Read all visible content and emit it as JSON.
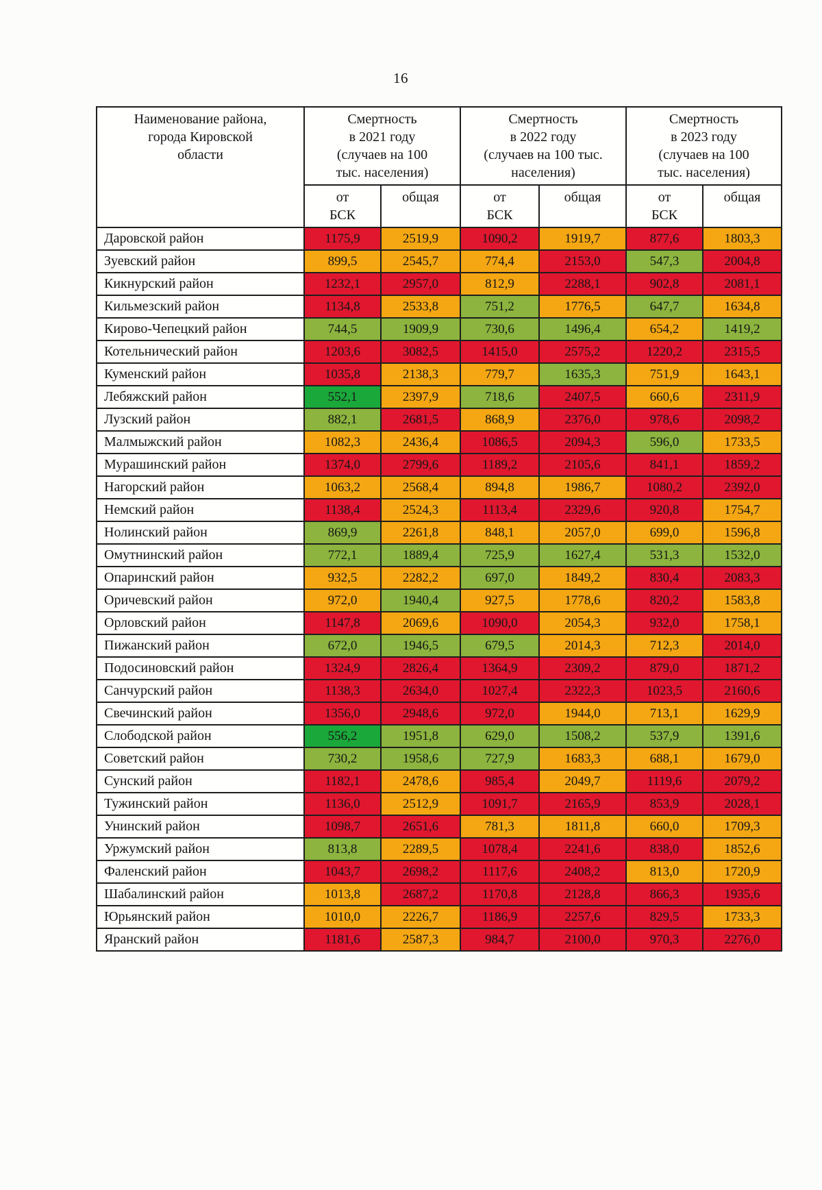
{
  "page_number": "16",
  "colors": {
    "red": "#E0172F",
    "orange": "#F4A713",
    "green": "#8CB43E",
    "bright_green": "#1AA83A"
  },
  "table": {
    "name_header": "Наименование района,\nгорода Кировской\nобласти",
    "years": [
      {
        "title": "Смертность\nв 2021 году\n(случаев на 100\nтыс. населения)"
      },
      {
        "title": "Смертность\nв 2022 году\n(случаев на 100 тыс.\nнаселения)"
      },
      {
        "title": "Смертность\nв 2023 году\n(случаев на 100\nтыс. населения)"
      }
    ],
    "subheaders": {
      "bsk": "от\nБСК",
      "total": "общая"
    },
    "rows": [
      {
        "name": "Даровской район",
        "values": [
          "1175,9",
          "2519,9",
          "1090,2",
          "1919,7",
          "877,6",
          "1803,3"
        ],
        "colors": [
          "red",
          "orange",
          "red",
          "orange",
          "red",
          "orange"
        ]
      },
      {
        "name": "Зуевский  район",
        "values": [
          "899,5",
          "2545,7",
          "774,4",
          "2153,0",
          "547,3",
          "2004,8"
        ],
        "colors": [
          "orange",
          "orange",
          "orange",
          "red",
          "green",
          "red"
        ]
      },
      {
        "name": "Кикнурский  район",
        "values": [
          "1232,1",
          "2957,0",
          "812,9",
          "2288,1",
          "902,8",
          "2081,1"
        ],
        "colors": [
          "red",
          "red",
          "orange",
          "red",
          "red",
          "red"
        ]
      },
      {
        "name": "Кильмезский  район",
        "values": [
          "1134,8",
          "2533,8",
          "751,2",
          "1776,5",
          "647,7",
          "1634,8"
        ],
        "colors": [
          "red",
          "orange",
          "green",
          "orange",
          "green",
          "orange"
        ]
      },
      {
        "name": "Кирово-Чепецкий  район",
        "values": [
          "744,5",
          "1909,9",
          "730,6",
          "1496,4",
          "654,2",
          "1419,2"
        ],
        "colors": [
          "green",
          "green",
          "green",
          "green",
          "orange",
          "green"
        ]
      },
      {
        "name": "Котельнический  район",
        "values": [
          "1203,6",
          "3082,5",
          "1415,0",
          "2575,2",
          "1220,2",
          "2315,5"
        ],
        "colors": [
          "red",
          "red",
          "red",
          "red",
          "red",
          "red"
        ]
      },
      {
        "name": "Куменский район",
        "values": [
          "1035,8",
          "2138,3",
          "779,7",
          "1635,3",
          "751,9",
          "1643,1"
        ],
        "colors": [
          "red",
          "orange",
          "orange",
          "green",
          "orange",
          "orange"
        ]
      },
      {
        "name": "Лебяжский район",
        "values": [
          "552,1",
          "2397,9",
          "718,6",
          "2407,5",
          "660,6",
          "2311,9"
        ],
        "colors": [
          "bright_green",
          "orange",
          "green",
          "red",
          "orange",
          "red"
        ]
      },
      {
        "name": "Лузский  район",
        "values": [
          "882,1",
          "2681,5",
          "868,9",
          "2376,0",
          "978,6",
          "2098,2"
        ],
        "colors": [
          "green",
          "red",
          "orange",
          "red",
          "red",
          "red"
        ]
      },
      {
        "name": "Малмыжский  район",
        "values": [
          "1082,3",
          "2436,4",
          "1086,5",
          "2094,3",
          "596,0",
          "1733,5"
        ],
        "colors": [
          "orange",
          "orange",
          "red",
          "red",
          "green",
          "orange"
        ]
      },
      {
        "name": "Мурашинский  район",
        "values": [
          "1374,0",
          "2799,6",
          "1189,2",
          "2105,6",
          "841,1",
          "1859,2"
        ],
        "colors": [
          "red",
          "red",
          "red",
          "red",
          "red",
          "red"
        ]
      },
      {
        "name": "Нагорский  район",
        "values": [
          "1063,2",
          "2568,4",
          "894,8",
          "1986,7",
          "1080,2",
          "2392,0"
        ],
        "colors": [
          "orange",
          "orange",
          "orange",
          "orange",
          "red",
          "red"
        ]
      },
      {
        "name": "Немский  район",
        "values": [
          "1138,4",
          "2524,3",
          "1113,4",
          "2329,6",
          "920,8",
          "1754,7"
        ],
        "colors": [
          "red",
          "orange",
          "red",
          "red",
          "red",
          "orange"
        ]
      },
      {
        "name": "Нолинский район",
        "values": [
          "869,9",
          "2261,8",
          "848,1",
          "2057,0",
          "699,0",
          "1596,8"
        ],
        "colors": [
          "green",
          "orange",
          "orange",
          "orange",
          "orange",
          "orange"
        ]
      },
      {
        "name": "Омутнинский  район",
        "values": [
          "772,1",
          "1889,4",
          "725,9",
          "1627,4",
          "531,3",
          "1532,0"
        ],
        "colors": [
          "green",
          "green",
          "green",
          "green",
          "green",
          "green"
        ]
      },
      {
        "name": "Опаринский  район",
        "values": [
          "932,5",
          "2282,2",
          "697,0",
          "1849,2",
          "830,4",
          "2083,3"
        ],
        "colors": [
          "orange",
          "orange",
          "green",
          "orange",
          "red",
          "red"
        ]
      },
      {
        "name": "Оричевский  район",
        "values": [
          "972,0",
          "1940,4",
          "927,5",
          "1778,6",
          "820,2",
          "1583,8"
        ],
        "colors": [
          "orange",
          "green",
          "orange",
          "orange",
          "red",
          "orange"
        ]
      },
      {
        "name": "Орловский  район",
        "values": [
          "1147,8",
          "2069,6",
          "1090,0",
          "2054,3",
          "932,0",
          "1758,1"
        ],
        "colors": [
          "red",
          "orange",
          "red",
          "orange",
          "red",
          "orange"
        ]
      },
      {
        "name": "Пижанский  район",
        "values": [
          "672,0",
          "1946,5",
          "679,5",
          "2014,3",
          "712,3",
          "2014,0"
        ],
        "colors": [
          "green",
          "green",
          "green",
          "orange",
          "orange",
          "red"
        ]
      },
      {
        "name": "Подосиновский  район",
        "values": [
          "1324,9",
          "2826,4",
          "1364,9",
          "2309,2",
          "879,0",
          "1871,2"
        ],
        "colors": [
          "red",
          "red",
          "red",
          "red",
          "red",
          "red"
        ]
      },
      {
        "name": "Санчурский  район",
        "values": [
          "1138,3",
          "2634,0",
          "1027,4",
          "2322,3",
          "1023,5",
          "2160,6"
        ],
        "colors": [
          "red",
          "red",
          "red",
          "red",
          "red",
          "red"
        ]
      },
      {
        "name": "Свечинский  район",
        "values": [
          "1356,0",
          "2948,6",
          "972,0",
          "1944,0",
          "713,1",
          "1629,9"
        ],
        "colors": [
          "red",
          "red",
          "red",
          "orange",
          "orange",
          "orange"
        ]
      },
      {
        "name": "Слободской  район",
        "values": [
          "556,2",
          "1951,8",
          "629,0",
          "1508,2",
          "537,9",
          "1391,6"
        ],
        "colors": [
          "bright_green",
          "green",
          "green",
          "green",
          "green",
          "green"
        ]
      },
      {
        "name": "Советский  район",
        "values": [
          "730,2",
          "1958,6",
          "727,9",
          "1683,3",
          "688,1",
          "1679,0"
        ],
        "colors": [
          "green",
          "green",
          "green",
          "orange",
          "orange",
          "orange"
        ]
      },
      {
        "name": "Сунский  район",
        "values": [
          "1182,1",
          "2478,6",
          "985,4",
          "2049,7",
          "1119,6",
          "2079,2"
        ],
        "colors": [
          "red",
          "orange",
          "red",
          "orange",
          "red",
          "red"
        ]
      },
      {
        "name": "Тужинский  район",
        "values": [
          "1136,0",
          "2512,9",
          "1091,7",
          "2165,9",
          "853,9",
          "2028,1"
        ],
        "colors": [
          "red",
          "orange",
          "red",
          "red",
          "red",
          "red"
        ]
      },
      {
        "name": "Унинский  район",
        "values": [
          "1098,7",
          "2651,6",
          "781,3",
          "1811,8",
          "660,0",
          "1709,3"
        ],
        "colors": [
          "red",
          "red",
          "orange",
          "orange",
          "orange",
          "orange"
        ]
      },
      {
        "name": "Уржумский  район",
        "values": [
          "813,8",
          "2289,5",
          "1078,4",
          "2241,6",
          "838,0",
          "1852,6"
        ],
        "colors": [
          "green",
          "orange",
          "red",
          "red",
          "red",
          "orange"
        ]
      },
      {
        "name": "Фаленский  район",
        "values": [
          "1043,7",
          "2698,2",
          "1117,6",
          "2408,2",
          "813,0",
          "1720,9"
        ],
        "colors": [
          "red",
          "red",
          "red",
          "red",
          "orange",
          "orange"
        ]
      },
      {
        "name": "Шабалинский  район",
        "values": [
          "1013,8",
          "2687,2",
          "1170,8",
          "2128,8",
          "866,3",
          "1935,6"
        ],
        "colors": [
          "orange",
          "red",
          "red",
          "red",
          "red",
          "red"
        ]
      },
      {
        "name": "Юрьянский  район",
        "values": [
          "1010,0",
          "2226,7",
          "1186,9",
          "2257,6",
          "829,5",
          "1733,3"
        ],
        "colors": [
          "orange",
          "orange",
          "red",
          "red",
          "red",
          "orange"
        ]
      },
      {
        "name": "Яранский  район",
        "values": [
          "1181,6",
          "2587,3",
          "984,7",
          "2100,0",
          "970,3",
          "2276,0"
        ],
        "colors": [
          "red",
          "orange",
          "red",
          "red",
          "red",
          "red"
        ]
      }
    ]
  }
}
